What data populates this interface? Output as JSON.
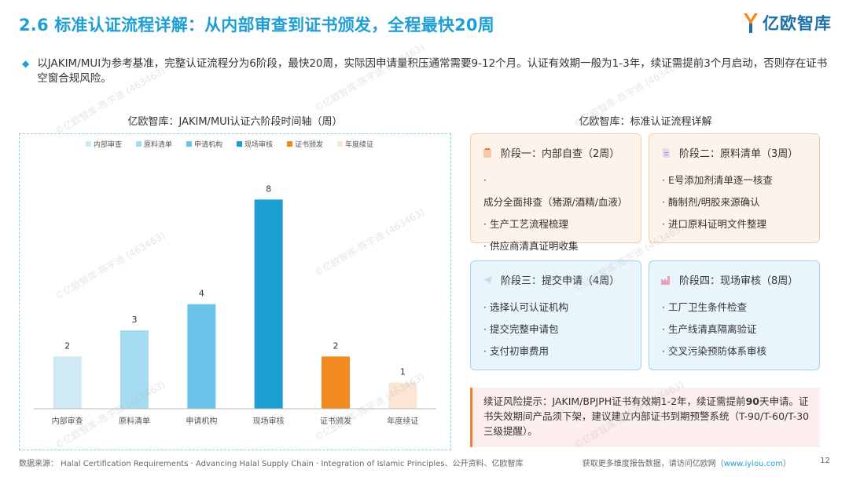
{
  "header": {
    "title": "2.6 标准认证流程详解：从内部审查到证书颁发，全程最快20周",
    "logo_text": "亿欧智库"
  },
  "intro": "以JAKIM/MUI为参考基准，完整认证流程分为6阶段，最快20周，实际因申请量积压通常需要9-12个月。认证有效期一般为1-3年，续证需提前3个月启动，否则存在证书空窗合规风险。",
  "left_title": "亿欧智库：JAKIM/MUI认证六阶段时间轴（周）",
  "right_title": "亿欧智库：标准认证流程详解",
  "chart_data": {
    "type": "bar",
    "categories": [
      "内部审查",
      "原料清单",
      "申请机构",
      "现场审核",
      "证书颁发",
      "年度续证"
    ],
    "values": [
      2,
      3,
      4,
      8,
      2,
      1
    ],
    "colors": [
      "#cfe9f5",
      "#a6dcf2",
      "#6cc4ea",
      "#1e9fd3",
      "#f28a22",
      "#fbe6d3"
    ],
    "legend": [
      "内部审查",
      "原料清单",
      "申请机构",
      "现场审核",
      "证书颁发",
      "年度续证"
    ],
    "ylim": [
      0,
      9
    ],
    "grid": false,
    "legend_position": "top"
  },
  "cards": [
    {
      "title": "阶段一：内部自查（2周）",
      "items": [
        "成分全面排查（猪源/酒精/血液）",
        "生产工艺流程梳理",
        "供应商清真证明收集"
      ]
    },
    {
      "title": "阶段二：原料清单（3周）",
      "items": [
        "E号添加剂清单逐一核查",
        "酶制剂/明胶来源确认",
        "进口原料证明文件整理"
      ]
    },
    {
      "title": "阶段三：提交申请（4周）",
      "items": [
        "选择认可认证机构",
        "提交完整申请包",
        "支付初审费用"
      ]
    },
    {
      "title": "阶段四：现场审核（8周）",
      "items": [
        "工厂卫生条件检查",
        "生产线清真隔离验证",
        "交叉污染预防体系审核"
      ]
    }
  ],
  "risk": {
    "prefix": "续证风险提示：JAKIM/BPJPH证书有效期1-2年，续证需提前",
    "bold": "90",
    "suffix": "天申请。证书失效期间产品须下架，建议建立内部证书到期预警系统（T-90/T-60/T-30三级提醒）。"
  },
  "footer": {
    "source": "数据来源： Halal Certification Requirements · Advancing Halal Supply Chain · Integration of Islamic Principles、公开资料、亿欧智库",
    "more_prefix": "获取更多维度报告数据，请访问亿欧网（",
    "link": "www.iyiou.com",
    "more_suffix": "）",
    "page": "12"
  },
  "watermark": "©亿欧智库-陈宇迪 (463463)"
}
